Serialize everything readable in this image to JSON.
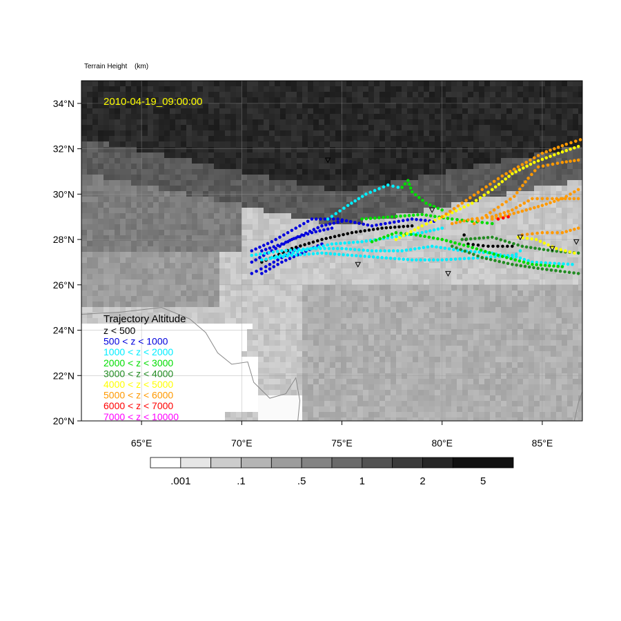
{
  "header": {
    "field_label": "Terrain Height",
    "units": "(km)"
  },
  "timestamp": "2010-04-19_09:00:00",
  "axes": {
    "lat_labels": [
      "34°N",
      "32°N",
      "30°N",
      "28°N",
      "26°N",
      "24°N",
      "22°N",
      "20°N"
    ],
    "lon_labels": [
      "65°E",
      "70°E",
      "75°E",
      "80°E",
      "85°E"
    ],
    "lat_values": [
      34,
      32,
      30,
      28,
      26,
      24,
      22,
      20
    ],
    "lon_values": [
      65,
      70,
      75,
      80,
      85
    ],
    "lat_range": [
      20,
      35
    ],
    "lon_range": [
      62,
      87
    ]
  },
  "legend": {
    "title": "Trajectory Altitude",
    "items": [
      {
        "label": "z < 500",
        "color": "#000000"
      },
      {
        "label": "500 < z < 1000",
        "color": "#0000dd"
      },
      {
        "label": "1000 < z < 2000",
        "color": "#00eeff"
      },
      {
        "label": "2000 < z < 3000",
        "color": "#00dd00"
      },
      {
        "label": "3000 < z < 4000",
        "color": "#228b22"
      },
      {
        "label": "4000 < z < 5000",
        "color": "#ffff00"
      },
      {
        "label": "5000 < z < 6000",
        "color": "#ff9900"
      },
      {
        "label": "6000 < z < 7000",
        "color": "#ff0000"
      },
      {
        "label": "7000 < z < 10000",
        "color": "#ff00ff"
      }
    ]
  },
  "colorbar": {
    "colors": [
      "#ffffff",
      "#e6e6e6",
      "#cccccc",
      "#b4b4b4",
      "#9c9c9c",
      "#838383",
      "#6a6a6a",
      "#525252",
      "#3b3b3b",
      "#262626",
      "#111111"
    ],
    "labels": [
      ".001",
      ".1",
      ".5",
      "1",
      "2",
      "5"
    ]
  },
  "stations": [
    {
      "lon": 74.3,
      "lat": 31.5
    },
    {
      "lon": 79.5,
      "lat": 29.3
    },
    {
      "lon": 75.8,
      "lat": 26.9
    },
    {
      "lon": 80.3,
      "lat": 26.5
    },
    {
      "lon": 83.9,
      "lat": 28.1
    },
    {
      "lon": 85.5,
      "lat": 27.6
    },
    {
      "lon": 86.7,
      "lat": 27.9
    }
  ],
  "trajectories": [
    {
      "color": "#0000dd",
      "points": [
        [
          70.5,
          27.5
        ],
        [
          71.5,
          27.9
        ],
        [
          72.5,
          28.4
        ],
        [
          73.5,
          28.9
        ],
        [
          74.8,
          28.9
        ],
        [
          76.5,
          28.6
        ],
        [
          78.5,
          28.9
        ],
        [
          79.6,
          28.8
        ]
      ]
    },
    {
      "color": "#0000dd",
      "points": [
        [
          70.5,
          27.0
        ],
        [
          71.5,
          27.5
        ],
        [
          72.5,
          28.0
        ],
        [
          73.5,
          28.3
        ],
        [
          74.5,
          28.5
        ]
      ]
    },
    {
      "color": "#0000dd",
      "points": [
        [
          70.5,
          26.5
        ],
        [
          71.2,
          26.8
        ],
        [
          72.0,
          27.2
        ],
        [
          72.8,
          27.6
        ]
      ]
    },
    {
      "color": "#0000dd",
      "points": [
        [
          71.0,
          27.5
        ],
        [
          72.0,
          27.8
        ],
        [
          73.0,
          28.2
        ],
        [
          74.0,
          28.6
        ],
        [
          75.0,
          28.8
        ]
      ]
    },
    {
      "color": "#0000dd",
      "points": [
        [
          71.0,
          26.5
        ],
        [
          72.0,
          27.0
        ],
        [
          73.0,
          27.4
        ],
        [
          74.0,
          27.8
        ]
      ]
    },
    {
      "color": "#000000",
      "points": [
        [
          71.0,
          27.0
        ],
        [
          72.5,
          27.6
        ],
        [
          74.0,
          28.0
        ],
        [
          75.5,
          28.3
        ],
        [
          77.0,
          28.5
        ],
        [
          78.5,
          28.6
        ]
      ]
    },
    {
      "color": "#000000",
      "points": [
        [
          81.1,
          28.2
        ],
        [
          81.3,
          27.8
        ],
        [
          82.3,
          27.7
        ],
        [
          83.5,
          27.7
        ]
      ]
    },
    {
      "color": "#00eeff",
      "points": [
        [
          70.5,
          27.3
        ],
        [
          72.0,
          27.5
        ],
        [
          73.5,
          27.6
        ],
        [
          75.0,
          27.6
        ],
        [
          76.5,
          27.5
        ],
        [
          78.0,
          27.5
        ],
        [
          79.5,
          27.7
        ],
        [
          81.0,
          27.5
        ],
        [
          82.5,
          27.4
        ],
        [
          83.5,
          27.2
        ],
        [
          83.9,
          27.5
        ]
      ]
    },
    {
      "color": "#00eeff",
      "points": [
        [
          71.0,
          27.1
        ],
        [
          72.5,
          27.3
        ],
        [
          74.0,
          27.4
        ],
        [
          75.5,
          27.3
        ],
        [
          77.0,
          27.2
        ],
        [
          78.5,
          27.1
        ],
        [
          80.0,
          27.1
        ],
        [
          82.0,
          27.2
        ],
        [
          83.5,
          27.3
        ],
        [
          84.5,
          27.0
        ],
        [
          86.5,
          26.9
        ]
      ]
    },
    {
      "color": "#00eeff",
      "points": [
        [
          74.3,
          28.9
        ],
        [
          75.3,
          29.5
        ],
        [
          76.2,
          30.0
        ],
        [
          77.3,
          30.4
        ],
        [
          77.8,
          30.3
        ]
      ]
    },
    {
      "color": "#00eeff",
      "points": [
        [
          71.5,
          27.2
        ],
        [
          73.0,
          27.5
        ],
        [
          74.5,
          27.8
        ],
        [
          76.0,
          27.9
        ],
        [
          77.5,
          28.1
        ],
        [
          79.0,
          28.3
        ],
        [
          80.0,
          28.5
        ]
      ]
    },
    {
      "color": "#00dd00",
      "points": [
        [
          78.0,
          30.3
        ],
        [
          78.3,
          30.6
        ],
        [
          78.5,
          30.1
        ],
        [
          79.2,
          29.6
        ],
        [
          80.0,
          29.3
        ]
      ]
    },
    {
      "color": "#00dd00",
      "points": [
        [
          76.5,
          27.9
        ],
        [
          77.7,
          28.3
        ],
        [
          78.7,
          28.2
        ],
        [
          80.0,
          28.0
        ],
        [
          81.3,
          27.7
        ],
        [
          82.8,
          27.3
        ],
        [
          84.5,
          26.9
        ],
        [
          86.0,
          26.8
        ]
      ]
    },
    {
      "color": "#00dd00",
      "points": [
        [
          76.0,
          28.9
        ],
        [
          77.5,
          29.0
        ],
        [
          79.0,
          29.1
        ],
        [
          80.5,
          28.9
        ],
        [
          81.5,
          28.8
        ],
        [
          82.5,
          28.7
        ]
      ]
    },
    {
      "color": "#228b22",
      "points": [
        [
          80.5,
          27.7
        ],
        [
          82.0,
          27.2
        ],
        [
          83.5,
          26.9
        ],
        [
          85.0,
          26.7
        ],
        [
          86.8,
          26.5
        ]
      ]
    },
    {
      "color": "#228b22",
      "points": [
        [
          81.0,
          28.0
        ],
        [
          82.5,
          28.1
        ],
        [
          84.0,
          27.7
        ],
        [
          85.5,
          27.5
        ],
        [
          86.8,
          27.4
        ]
      ]
    },
    {
      "color": "#ffff00",
      "points": [
        [
          77.7,
          28.0
        ],
        [
          79.0,
          28.6
        ],
        [
          80.3,
          29.1
        ],
        [
          81.5,
          29.6
        ],
        [
          82.5,
          30.2
        ],
        [
          83.5,
          30.9
        ],
        [
          84.6,
          31.4
        ],
        [
          85.8,
          31.8
        ],
        [
          86.8,
          32.1
        ]
      ]
    },
    {
      "color": "#ffff00",
      "points": [
        [
          83.8,
          28.1
        ],
        [
          84.7,
          28.0
        ],
        [
          85.7,
          27.6
        ],
        [
          86.6,
          27.4
        ]
      ]
    },
    {
      "color": "#ff9900",
      "points": [
        [
          80.0,
          29.0
        ],
        [
          81.0,
          29.6
        ],
        [
          82.0,
          30.2
        ],
        [
          83.0,
          30.8
        ],
        [
          84.0,
          31.3
        ],
        [
          85.0,
          31.8
        ],
        [
          86.2,
          32.2
        ],
        [
          86.9,
          32.4
        ]
      ]
    },
    {
      "color": "#ff9900",
      "points": [
        [
          81.6,
          28.7
        ],
        [
          82.6,
          29.3
        ],
        [
          83.6,
          29.9
        ],
        [
          84.3,
          30.7
        ],
        [
          84.8,
          31.2
        ],
        [
          86.0,
          31.4
        ],
        [
          86.8,
          31.5
        ]
      ]
    },
    {
      "color": "#ff9900",
      "points": [
        [
          80.5,
          28.7
        ],
        [
          81.5,
          28.9
        ],
        [
          82.5,
          29.0
        ],
        [
          83.5,
          29.3
        ],
        [
          84.5,
          29.8
        ],
        [
          85.5,
          29.8
        ],
        [
          86.8,
          29.8
        ]
      ]
    },
    {
      "color": "#ff9900",
      "points": [
        [
          82.5,
          28.9
        ],
        [
          83.8,
          29.2
        ],
        [
          85.0,
          29.5
        ],
        [
          86.0,
          29.8
        ],
        [
          86.8,
          30.2
        ]
      ]
    },
    {
      "color": "#ff9900",
      "points": [
        [
          84.0,
          28.2
        ],
        [
          85.0,
          28.3
        ],
        [
          86.0,
          28.3
        ],
        [
          86.8,
          28.5
        ]
      ]
    },
    {
      "color": "#ff0000",
      "points": [
        [
          82.8,
          28.9
        ],
        [
          83.3,
          29.0
        ]
      ]
    }
  ]
}
